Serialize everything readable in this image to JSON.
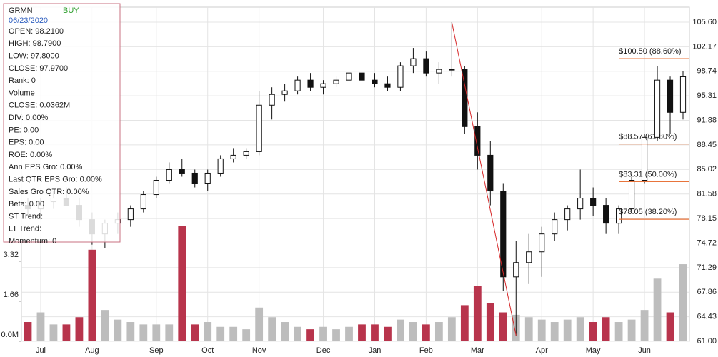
{
  "chart_data": {
    "type": "candlestick",
    "categories": [
      null,
      "Jul",
      null,
      null,
      null,
      "Aug",
      null,
      null,
      null,
      null,
      "Sep",
      null,
      null,
      null,
      "Oct",
      null,
      null,
      null,
      "Nov",
      null,
      null,
      null,
      null,
      "Dec",
      null,
      null,
      null,
      "Jan",
      null,
      null,
      null,
      "Feb",
      null,
      null,
      null,
      "Mar",
      null,
      null,
      null,
      null,
      "Apr",
      null,
      null,
      null,
      "May",
      null,
      null,
      null,
      "Jun",
      null,
      null,
      null
    ],
    "open": [
      80,
      79.5,
      80.5,
      81,
      80,
      78,
      76,
      77.5,
      78,
      79.5,
      81.5,
      83.5,
      85,
      84.5,
      83,
      84.5,
      86.5,
      87,
      87.5,
      94,
      95.5,
      96,
      97.5,
      96.5,
      97,
      97.5,
      98.5,
      97.5,
      97,
      96.5,
      99.5,
      100.5,
      98.5,
      99,
      99,
      91,
      87,
      82,
      70,
      72,
      73.5,
      76,
      78,
      79.5,
      81,
      80,
      77.5,
      79.5,
      83.5,
      89.5,
      97.5,
      93
    ],
    "high": [
      81,
      81,
      82,
      82.5,
      81,
      79,
      78,
      79,
      80,
      82,
      84,
      86,
      86.5,
      85,
      85,
      87,
      88,
      88,
      96,
      96.5,
      97,
      98,
      98.5,
      97.5,
      98,
      99,
      99,
      98.5,
      98,
      100,
      102,
      101.5,
      100,
      105.6,
      99.5,
      93,
      89,
      83,
      75,
      76,
      77,
      79,
      80,
      85,
      82.5,
      81,
      80,
      84,
      90,
      99.5,
      98,
      98.8
    ],
    "low": [
      78.5,
      78,
      79.5,
      80,
      77,
      74.5,
      74,
      76,
      77,
      79,
      81,
      83,
      84,
      82.5,
      82,
      84,
      86,
      86.5,
      87,
      92,
      94.5,
      95.5,
      96,
      95.5,
      96.5,
      97,
      97,
      96.5,
      96,
      96,
      98.5,
      98,
      97,
      98,
      90,
      85,
      80,
      68,
      61.8,
      69,
      70,
      75,
      76.5,
      78,
      78.5,
      76,
      76,
      79,
      83,
      89,
      90,
      92
    ],
    "close": [
      79.5,
      80.5,
      81,
      80,
      78,
      76,
      77.5,
      78,
      79.5,
      81.5,
      83.5,
      85,
      84.5,
      83,
      84.5,
      86.5,
      87,
      87.5,
      94,
      95.5,
      96,
      97.5,
      96.5,
      97,
      97.5,
      98.5,
      97.5,
      97,
      96.5,
      99.5,
      100.5,
      98.5,
      99,
      99,
      91,
      87,
      82,
      70,
      72,
      73.5,
      76,
      78,
      79.5,
      81,
      80,
      77.5,
      79.5,
      83.5,
      89.5,
      97.5,
      93,
      97.97
    ],
    "volume": [
      0.8,
      1.2,
      0.7,
      0.7,
      1.0,
      3.8,
      1.3,
      0.9,
      0.8,
      0.7,
      0.7,
      0.7,
      4.8,
      0.7,
      0.8,
      0.6,
      0.6,
      0.5,
      1.4,
      1.0,
      0.8,
      0.6,
      0.5,
      0.6,
      0.5,
      0.6,
      0.7,
      0.7,
      0.6,
      0.9,
      0.8,
      0.7,
      0.8,
      1.0,
      1.5,
      2.3,
      1.6,
      1.2,
      1.1,
      1.0,
      0.9,
      0.8,
      0.9,
      1.0,
      0.8,
      1.0,
      0.8,
      0.9,
      1.3,
      2.6,
      1.2,
      3.2
    ],
    "color": "#111111",
    "volume_up_color": "#bdbdbd",
    "volume_down_color": "#b8344c",
    "ylim": [
      61,
      105.6
    ],
    "yticks": [
      {
        "value": 61,
        "label": "61.00"
      },
      64.43,
      67.86,
      71.29,
      74.72,
      78.15,
      81.58,
      85.02,
      88.45,
      91.88,
      95.31,
      98.74,
      102.17,
      {
        "value": 105.6,
        "label": "105.60"
      }
    ],
    "vlim": [
      0,
      13.25
    ],
    "vticks": [
      {
        "value": 0,
        "label": "0.0M"
      },
      1.66,
      3.32
    ],
    "grid": true,
    "trendline": {
      "color": "#d62728",
      "start_index": 33,
      "start_value": 105.6,
      "end_index": 38,
      "end_value": 61.8
    },
    "levels": {
      "color": "#e8743b",
      "start_index": 46,
      "items": [
        {
          "value": 100.5,
          "label": "$100.50 (88.60%)"
        },
        {
          "value": 88.57,
          "label": "$88.57 (61.80%)"
        },
        {
          "value": 83.31,
          "label": "$83.31 (50.00%)"
        },
        {
          "value": 78.05,
          "label": "$78.05 (38.20%)"
        }
      ]
    }
  },
  "info": {
    "symbol": "GRMN",
    "signal": "BUY",
    "date": "06/23/2020",
    "lines": [
      "OPEN: 98.2100",
      "HIGH: 98.7900",
      "LOW: 97.8000",
      "CLOSE: 97.9700",
      "Rank: 0",
      "Volume",
      "CLOSE: 0.0362M",
      "DIV: 0.00%",
      "PE: 0.00",
      "EPS: 0.00",
      "ROE: 0.00%",
      "Ann EPS Gro: 0.00%",
      "Last QTR EPS Gro: 0.00%",
      "Sales Gro QTR: 0.00%",
      "Beta: 0.00",
      "ST Trend:",
      "LT Trend:",
      "Momentum: 0"
    ]
  }
}
